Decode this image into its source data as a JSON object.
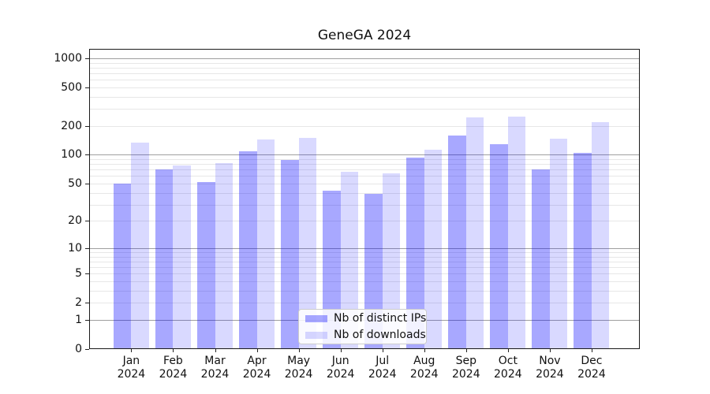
{
  "chart_data": {
    "type": "bar",
    "title": "GeneGA 2024",
    "categories": [
      "Jan",
      "Feb",
      "Mar",
      "Apr",
      "May",
      "Jun",
      "Jul",
      "Aug",
      "Sep",
      "Oct",
      "Nov",
      "Dec"
    ],
    "category_year": "2024",
    "series": [
      {
        "name": "Nb of distinct IPs",
        "color": "rgba(0,0,255,0.34)",
        "values": [
          50,
          70,
          52,
          108,
          88,
          42,
          39,
          94,
          160,
          130,
          71,
          104
        ]
      },
      {
        "name": "Nb of downloads",
        "color": "rgba(0,0,255,0.15)",
        "values": [
          135,
          78,
          82,
          145,
          150,
          66,
          64,
          112,
          245,
          250,
          147,
          220
        ]
      }
    ],
    "xlabel": "",
    "ylabel": "",
    "y_scale": "log(value+1)",
    "ylim": [
      0,
      1250
    ],
    "y_tick_values": [
      0,
      1,
      2,
      5,
      10,
      20,
      50,
      100,
      200,
      500,
      1000
    ],
    "y_tick_labels": [
      "0",
      "1",
      "2",
      "5",
      "10",
      "20",
      "50",
      "100",
      "200",
      "500",
      "1000"
    ],
    "y_gridlines_major": [
      1,
      10,
      100,
      1000
    ],
    "y_gridlines_minor": [
      2,
      3,
      4,
      5,
      6,
      7,
      8,
      9,
      20,
      30,
      40,
      50,
      60,
      70,
      80,
      90,
      200,
      300,
      400,
      500,
      600,
      700,
      800,
      900
    ],
    "grid": true,
    "legend_position": "lower center"
  }
}
